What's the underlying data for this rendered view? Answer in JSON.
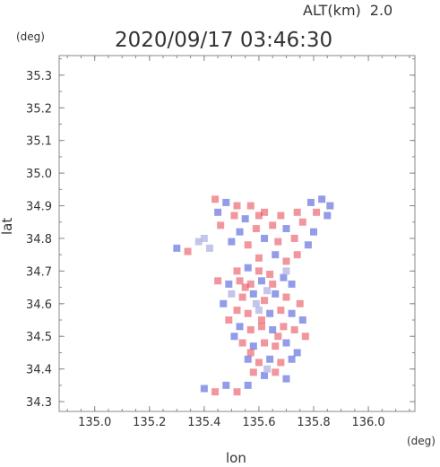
{
  "header": {
    "alt_label": "ALT(km)",
    "alt_value": "2.0",
    "timestamp": "2020/09/17 03:46:30"
  },
  "chart_data": {
    "type": "heatmap",
    "xlabel": "lon",
    "ylabel": "lat",
    "x_unit": "(deg)",
    "y_unit": "(deg)",
    "xlim": [
      134.87,
      136.17
    ],
    "ylim": [
      34.27,
      35.36
    ],
    "x_ticks": [
      135.0,
      135.2,
      135.4,
      135.6,
      135.8,
      136.0
    ],
    "x_tick_labels": [
      "135.0",
      "135.2",
      "135.4",
      "135.6",
      "135.8",
      "136.0"
    ],
    "y_ticks": [
      34.3,
      34.4,
      34.5,
      34.6,
      34.7,
      34.8,
      34.9,
      35.0,
      35.1,
      35.2,
      35.3
    ],
    "y_tick_labels": [
      "34.3",
      "34.4",
      "34.5",
      "34.6",
      "34.7",
      "34.8",
      "34.9",
      "35.0",
      "35.1",
      "35.2",
      "35.3"
    ],
    "grid": false,
    "colors": {
      "positive": "#e8505a",
      "negative": "#4a5ad8",
      "neutral": "#b8bce8",
      "axis": "#888888"
    },
    "cells": [
      [
        135.44,
        34.92,
        1
      ],
      [
        135.48,
        34.91,
        -1
      ],
      [
        135.52,
        34.9,
        1
      ],
      [
        135.57,
        34.9,
        1
      ],
      [
        135.62,
        34.88,
        1
      ],
      [
        135.79,
        34.91,
        -1
      ],
      [
        135.83,
        34.92,
        -1
      ],
      [
        135.86,
        34.9,
        -1
      ],
      [
        135.45,
        34.88,
        -1
      ],
      [
        135.51,
        34.87,
        1
      ],
      [
        135.55,
        34.86,
        -1
      ],
      [
        135.6,
        34.87,
        1
      ],
      [
        135.68,
        34.87,
        1
      ],
      [
        135.74,
        34.88,
        1
      ],
      [
        135.81,
        34.88,
        1
      ],
      [
        135.85,
        34.87,
        -1
      ],
      [
        135.46,
        34.84,
        1
      ],
      [
        135.53,
        34.82,
        -1
      ],
      [
        135.59,
        34.83,
        1
      ],
      [
        135.65,
        34.84,
        1
      ],
      [
        135.7,
        34.83,
        -1
      ],
      [
        135.76,
        34.85,
        1
      ],
      [
        135.8,
        34.82,
        -1
      ],
      [
        135.5,
        34.79,
        -1
      ],
      [
        135.56,
        34.78,
        1
      ],
      [
        135.62,
        34.8,
        -1
      ],
      [
        135.67,
        34.79,
        1
      ],
      [
        135.73,
        34.8,
        1
      ],
      [
        135.78,
        34.78,
        -1
      ],
      [
        135.42,
        34.77,
        0
      ],
      [
        135.4,
        34.8,
        0
      ],
      [
        135.38,
        34.79,
        0
      ],
      [
        135.6,
        34.74,
        1
      ],
      [
        135.66,
        34.75,
        -1
      ],
      [
        135.7,
        34.73,
        1
      ],
      [
        135.74,
        34.75,
        1
      ],
      [
        135.52,
        34.7,
        1
      ],
      [
        135.56,
        34.71,
        -1
      ],
      [
        135.6,
        34.7,
        1
      ],
      [
        135.64,
        34.69,
        1
      ],
      [
        135.45,
        34.67,
        1
      ],
      [
        135.49,
        34.66,
        -1
      ],
      [
        135.53,
        34.67,
        1
      ],
      [
        135.57,
        34.66,
        1
      ],
      [
        135.61,
        34.67,
        -1
      ],
      [
        135.65,
        34.66,
        1
      ],
      [
        135.69,
        34.68,
        -1
      ],
      [
        135.72,
        34.66,
        -1
      ],
      [
        135.5,
        34.63,
        0
      ],
      [
        135.54,
        34.62,
        1
      ],
      [
        135.58,
        34.63,
        -1
      ],
      [
        135.62,
        34.61,
        1
      ],
      [
        135.66,
        34.63,
        -1
      ],
      [
        135.7,
        34.62,
        1
      ],
      [
        135.52,
        34.58,
        1
      ],
      [
        135.56,
        34.57,
        1
      ],
      [
        135.6,
        34.58,
        0
      ],
      [
        135.64,
        34.57,
        -1
      ],
      [
        135.68,
        34.58,
        1
      ],
      [
        135.72,
        34.57,
        -1
      ],
      [
        135.53,
        34.53,
        -1
      ],
      [
        135.57,
        34.52,
        1
      ],
      [
        135.61,
        34.53,
        1
      ],
      [
        135.65,
        34.52,
        -1
      ],
      [
        135.69,
        34.53,
        1
      ],
      [
        135.73,
        34.52,
        1
      ],
      [
        135.54,
        34.48,
        1
      ],
      [
        135.58,
        34.47,
        -1
      ],
      [
        135.62,
        34.48,
        1
      ],
      [
        135.66,
        34.47,
        1
      ],
      [
        135.7,
        34.48,
        -1
      ],
      [
        135.56,
        34.43,
        -1
      ],
      [
        135.6,
        34.42,
        1
      ],
      [
        135.64,
        34.43,
        -1
      ],
      [
        135.68,
        34.42,
        1
      ],
      [
        135.72,
        34.43,
        -1
      ],
      [
        135.58,
        34.39,
        1
      ],
      [
        135.62,
        34.38,
        -1
      ],
      [
        135.66,
        34.39,
        1
      ],
      [
        135.7,
        34.37,
        -1
      ],
      [
        135.4,
        34.34,
        -1
      ],
      [
        135.44,
        34.33,
        1
      ],
      [
        135.48,
        34.35,
        -1
      ],
      [
        135.52,
        34.33,
        1
      ],
      [
        135.56,
        34.35,
        -1
      ],
      [
        135.3,
        34.77,
        -1
      ],
      [
        135.34,
        34.76,
        1
      ],
      [
        135.47,
        34.6,
        -1
      ],
      [
        135.49,
        34.55,
        1
      ],
      [
        135.51,
        34.5,
        -1
      ],
      [
        135.75,
        34.6,
        1
      ],
      [
        135.76,
        34.55,
        -1
      ],
      [
        135.77,
        34.5,
        1
      ],
      [
        135.74,
        34.45,
        -1
      ],
      [
        135.63,
        34.64,
        0
      ],
      [
        135.59,
        34.6,
        0
      ],
      [
        135.55,
        34.65,
        1
      ],
      [
        135.61,
        34.55,
        1
      ],
      [
        135.57,
        34.45,
        1
      ],
      [
        135.67,
        34.5,
        1
      ],
      [
        135.63,
        34.4,
        0
      ],
      [
        135.7,
        34.7,
        0
      ]
    ]
  }
}
